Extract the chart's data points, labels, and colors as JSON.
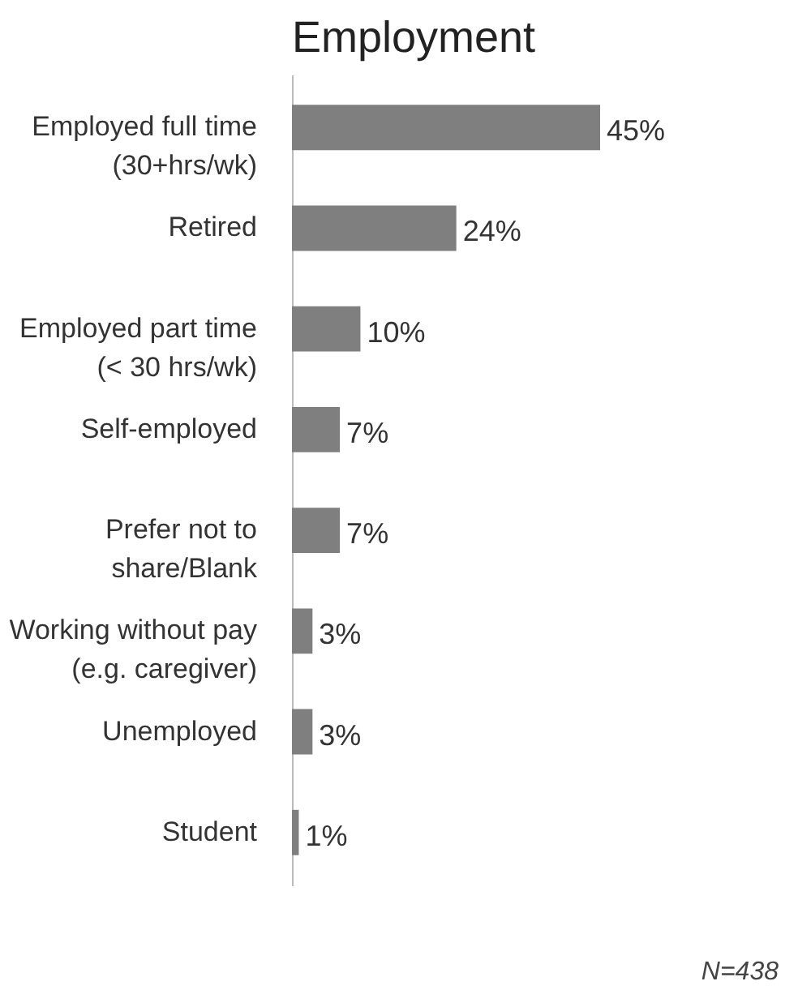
{
  "chart_data": {
    "type": "bar",
    "orientation": "horizontal",
    "title": "Employment",
    "categories": [
      "Employed full time (30+hrs/wk)",
      "Retired",
      "Employed part time (< 30 hrs/wk)",
      "Self-employed",
      "Prefer not to share/Blank",
      "Working without pay (e.g. caregiver)",
      "Unemployed",
      "Student"
    ],
    "values": [
      45,
      24,
      10,
      7,
      7,
      3,
      3,
      1
    ],
    "value_labels": [
      "45%",
      "24%",
      "10%",
      "7%",
      "7%",
      "3%",
      "3%",
      "1%"
    ],
    "color": "#7f7f80",
    "annotations": [
      "N=438"
    ]
  }
}
